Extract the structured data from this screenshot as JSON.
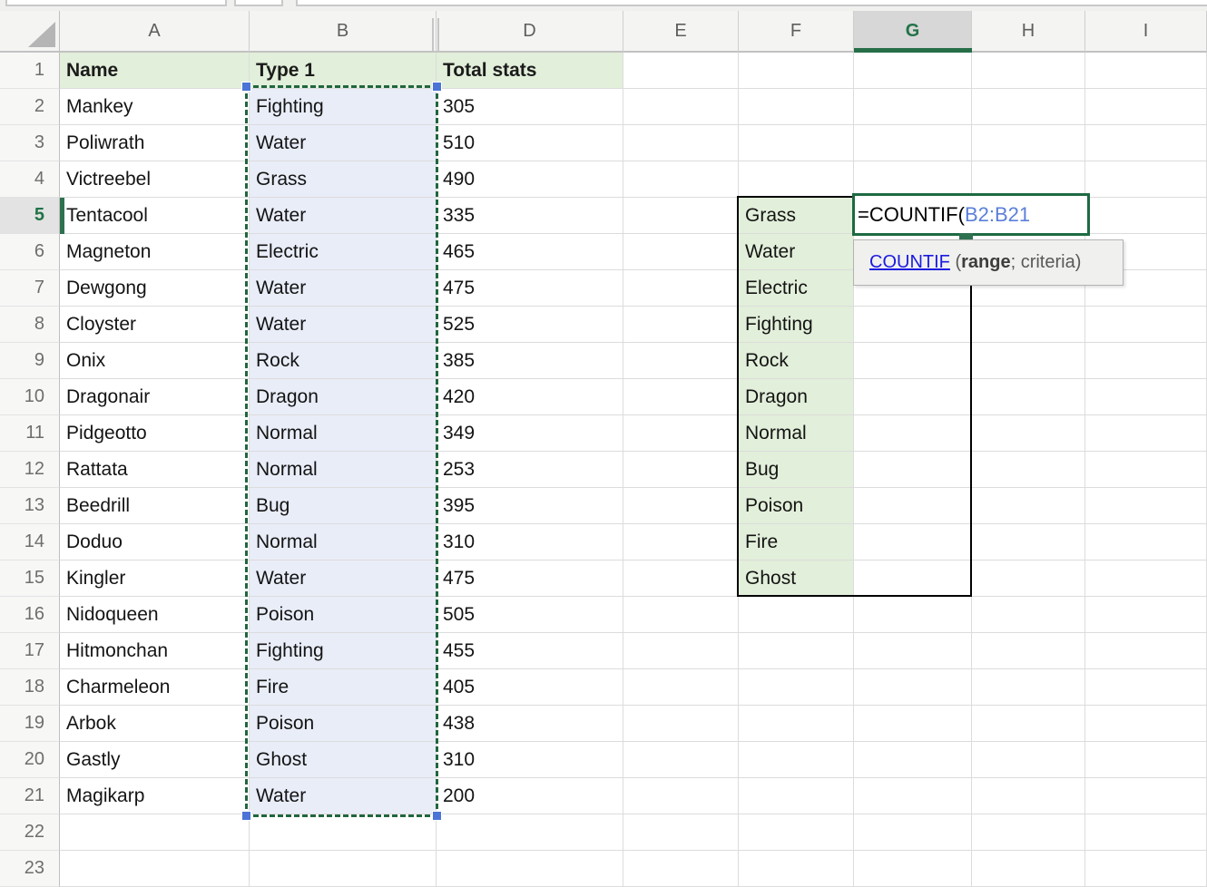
{
  "columns": [
    "A",
    "B",
    "D",
    "E",
    "F",
    "G",
    "H",
    "I"
  ],
  "rows": [
    1,
    2,
    3,
    4,
    5,
    6,
    7,
    8,
    9,
    10,
    11,
    12,
    13,
    14,
    15,
    16,
    17,
    18,
    19,
    20,
    21,
    22,
    23
  ],
  "selected_column": "G",
  "selected_row": 5,
  "table": {
    "headers": [
      "Name",
      "Type 1",
      "Total stats"
    ],
    "names": [
      "Mankey",
      "Poliwrath",
      "Victreebel",
      "Tentacool",
      "Magneton",
      "Dewgong",
      "Cloyster",
      "Onix",
      "Dragonair",
      "Pidgeotto",
      "Rattata",
      "Beedrill",
      "Doduo",
      "Kingler",
      "Nidoqueen",
      "Hitmonchan",
      "Charmeleon",
      "Arbok",
      "Gastly",
      "Magikarp"
    ],
    "types": [
      "Fighting",
      "Water",
      "Grass",
      "Water",
      "Electric",
      "Water",
      "Water",
      "Rock",
      "Dragon",
      "Normal",
      "Normal",
      "Bug",
      "Normal",
      "Water",
      "Poison",
      "Fighting",
      "Fire",
      "Poison",
      "Ghost",
      "Water"
    ],
    "totals": [
      "305",
      "510",
      "490",
      "335",
      "465",
      "475",
      "525",
      "385",
      "420",
      "349",
      "253",
      "395",
      "310",
      "475",
      "505",
      "455",
      "405",
      "438",
      "310",
      "200"
    ]
  },
  "criteria_list": [
    "Grass",
    "Water",
    "Electric",
    "Fighting",
    "Rock",
    "Dragon",
    "Normal",
    "Bug",
    "Poison",
    "Fire",
    "Ghost"
  ],
  "formula": {
    "prefix": "=COUNTIF(",
    "range": "B2:B21"
  },
  "tooltip": {
    "function_name": "COUNTIF",
    "separator": " (",
    "range_arg": "range",
    "rest": "; criteria)"
  },
  "colors": {
    "header_fill": "#e2efda",
    "selection_fill": "#e9edf8",
    "accent_green": "#217346",
    "ants_green": "#21663f",
    "handle_blue": "#4b74d6",
    "ref_blue": "#5b7fd9",
    "link_blue": "#1b1be0"
  }
}
